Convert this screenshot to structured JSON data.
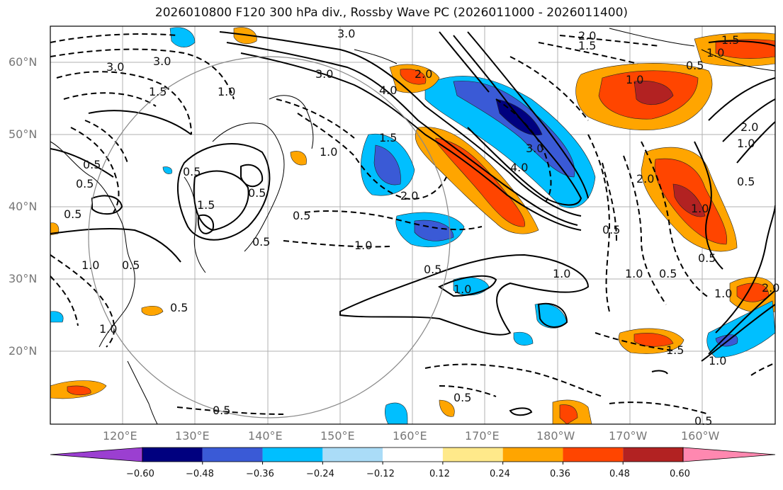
{
  "title": "2026010800 F120 300 hPa div., Rossby Wave PC (2026011000 - 2026011400)",
  "lat_labels": [
    "60°N",
    "50°N",
    "40°N",
    "30°N",
    "20°N"
  ],
  "lon_labels": [
    "120°E",
    "130°E",
    "140°E",
    "150°E",
    "160°E",
    "170°E",
    "180°W",
    "170°W",
    "160°W"
  ],
  "colorbar": {
    "labels": [
      "−0.60",
      "−0.48",
      "−0.36",
      "−0.24",
      "−0.12",
      "0.12",
      "0.24",
      "0.36",
      "0.48",
      "0.60"
    ],
    "colors": [
      "#9b3fd1",
      "#00007f",
      "#3a5ad6",
      "#00bfff",
      "#aadcf7",
      "#ffffff",
      "#ffe98a",
      "#ffa500",
      "#ff4500",
      "#b22222",
      "#ff88b0"
    ]
  },
  "contour_labels": [
    "3.0",
    "3.0",
    "4.0",
    "3.0",
    "1.5",
    "1.0",
    "3.0",
    "2.0",
    "1.5",
    "1.0",
    "0.5",
    "2.0",
    "4.0",
    "3.0",
    "2.0",
    "1.5",
    "0.5",
    "0.5",
    "0.5",
    "1.0",
    "0.5",
    "0.5",
    "1.0",
    "0.5",
    "1.0",
    "0.5",
    "1.0",
    "0.5",
    "1.0",
    "0.5",
    "0.5",
    "1.0",
    "0.5",
    "1.5",
    "1.0",
    "1.0",
    "2.0",
    "0.5",
    "1.0",
    "0.5",
    "2.0",
    "1.5",
    "1.0",
    "1.5",
    "1.0",
    "0.5",
    "2.0",
    "1.0",
    "0.5",
    "0.5",
    "0.5"
  ]
}
